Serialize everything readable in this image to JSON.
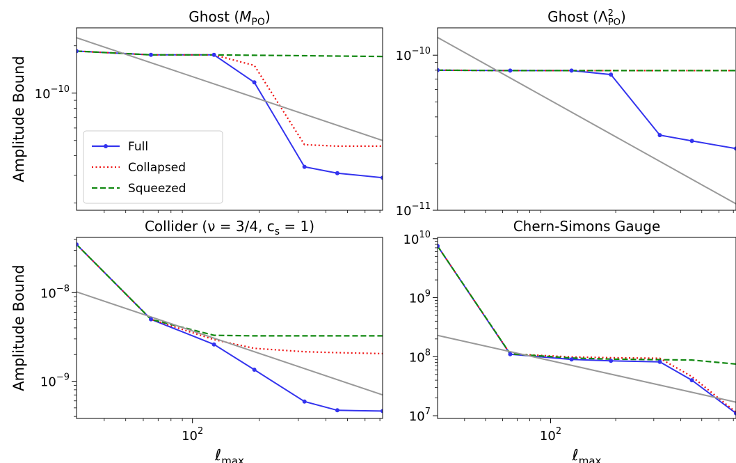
{
  "colors": {
    "full": "#3333ee",
    "collapsed": "#ee1111",
    "squeezed": "#118811",
    "reference": "#999999"
  },
  "legend": {
    "location": "lower-left of top-left panel",
    "entries": [
      {
        "series": "full",
        "label": "Full"
      },
      {
        "series": "collapsed",
        "label": "Collapsed"
      },
      {
        "series": "squeezed",
        "label": "Squeezed"
      }
    ]
  },
  "chart_data": [
    {
      "type": "line",
      "xscale": "log",
      "yscale": "log",
      "title_pre": "Ghost (",
      "title_italic": "M",
      "title_sub": "PO",
      "title_sup": "",
      "title_post": ")",
      "ylabel": "Amplitude Bound",
      "xlabel": "",
      "xlim": [
        30,
        720
      ],
      "ylim": [
        1.8e-11,
        2.6e-10
      ],
      "yticks": [
        {
          "value": 1e-10,
          "base": "10",
          "exp": "−10"
        }
      ],
      "xticks": [],
      "x": [
        30,
        65,
        125,
        190,
        320,
        450,
        720
      ],
      "series": [
        {
          "key": "full",
          "markers": true,
          "values": [
            1.85e-10,
            1.75e-10,
            1.75e-10,
            1.17e-10,
            3.4e-11,
            3.1e-11,
            2.9e-11
          ]
        },
        {
          "key": "collapsed",
          "markers": false,
          "values": [
            1.85e-10,
            1.75e-10,
            1.75e-10,
            1.5e-10,
            4.7e-11,
            4.6e-11,
            4.6e-11
          ]
        },
        {
          "key": "squeezed",
          "markers": false,
          "values": [
            1.85e-10,
            1.75e-10,
            1.75e-10,
            1.74e-10,
            1.73e-10,
            1.72e-10,
            1.71e-10
          ]
        },
        {
          "key": "reference",
          "markers": false,
          "x": [
            30,
            720
          ],
          "values": [
            2.25e-10,
            5e-11
          ]
        }
      ]
    },
    {
      "type": "line",
      "xscale": "log",
      "yscale": "log",
      "title_pre": "Ghost (",
      "title_italic": "",
      "title_sub": "PO",
      "title_sup": "2",
      "title_post": ")",
      "title_symbol": "Λ",
      "ylabel": "",
      "xlabel": "",
      "xlim": [
        30,
        720
      ],
      "ylim": [
        1e-11,
        1.5e-10
      ],
      "yticks": [
        {
          "value": 1e-10,
          "base": "10",
          "exp": "−10"
        },
        {
          "value": 1e-11,
          "base": "10",
          "exp": "−11"
        }
      ],
      "xticks": [],
      "x": [
        30,
        65,
        125,
        190,
        320,
        450,
        720
      ],
      "series": [
        {
          "key": "full",
          "markers": true,
          "values": [
            8e-11,
            7.95e-11,
            7.95e-11,
            7.5e-11,
            3.05e-11,
            2.8e-11,
            2.5e-11
          ]
        },
        {
          "key": "collapsed",
          "markers": false,
          "values": [
            8e-11,
            7.95e-11,
            7.95e-11,
            7.95e-11,
            7.95e-11,
            7.95e-11,
            7.95e-11
          ]
        },
        {
          "key": "squeezed",
          "markers": false,
          "values": [
            8e-11,
            7.95e-11,
            7.95e-11,
            7.95e-11,
            7.95e-11,
            7.95e-11,
            7.95e-11
          ]
        },
        {
          "key": "reference",
          "markers": false,
          "x": [
            30,
            720
          ],
          "values": [
            1.3e-10,
            1.1e-11
          ]
        }
      ]
    },
    {
      "type": "line",
      "xscale": "log",
      "yscale": "log",
      "title_text": "Collider (ν = 3/4, c",
      "title_sub": "s",
      "title_post": " = 1)",
      "ylabel": "Amplitude Bound",
      "xlabel": "ℓ",
      "xlabel_sub": "max",
      "xlim": [
        30,
        720
      ],
      "ylim": [
        3.8e-10,
        4.2e-08
      ],
      "yticks": [
        {
          "value": 1e-08,
          "base": "10",
          "exp": "−8"
        },
        {
          "value": 1e-09,
          "base": "10",
          "exp": "−9"
        }
      ],
      "xticks": [
        {
          "value": 100,
          "base": "10",
          "exp": "2"
        }
      ],
      "x": [
        30,
        65,
        125,
        190,
        320,
        450,
        720
      ],
      "series": [
        {
          "key": "full",
          "markers": true,
          "values": [
            3.5e-08,
            5e-09,
            2.6e-09,
            1.35e-09,
            5.9e-10,
            4.7e-10,
            4.6e-10
          ]
        },
        {
          "key": "collapsed",
          "markers": false,
          "values": [
            3.5e-08,
            5e-09,
            2.95e-09,
            2.35e-09,
            2.15e-09,
            2.1e-09,
            2.05e-09
          ]
        },
        {
          "key": "squeezed",
          "markers": false,
          "values": [
            3.5e-08,
            5e-09,
            3.3e-09,
            3.25e-09,
            3.25e-09,
            3.25e-09,
            3.25e-09
          ]
        },
        {
          "key": "reference",
          "markers": false,
          "x": [
            30,
            720
          ],
          "values": [
            1.02e-08,
            7e-10
          ]
        }
      ]
    },
    {
      "type": "line",
      "xscale": "log",
      "yscale": "log",
      "title_text": "Chern-Simons Gauge",
      "ylabel": "",
      "xlabel": "ℓ",
      "xlabel_sub": "max",
      "xlim": [
        30,
        720
      ],
      "ylim": [
        9000000.0,
        10500000000.0
      ],
      "yticks": [
        {
          "value": 10000000000.0,
          "base": "10",
          "exp": "10"
        },
        {
          "value": 1000000000.0,
          "base": "10",
          "exp": "9"
        },
        {
          "value": 100000000.0,
          "base": "10",
          "exp": "8"
        },
        {
          "value": 10000000.0,
          "base": "10",
          "exp": "7"
        }
      ],
      "xticks": [
        {
          "value": 100,
          "base": "10",
          "exp": "2"
        }
      ],
      "x": [
        30,
        65,
        125,
        190,
        320,
        450,
        720
      ],
      "series": [
        {
          "key": "full",
          "markers": true,
          "values": [
            7500000000.0,
            110000000.0,
            90000000.0,
            85000000.0,
            82000000.0,
            40000000.0,
            11000000.0
          ]
        },
        {
          "key": "collapsed",
          "markers": false,
          "values": [
            7500000000.0,
            112000000.0,
            99000000.0,
            96000000.0,
            94000000.0,
            46000000.0,
            11500000.0
          ]
        },
        {
          "key": "squeezed",
          "markers": false,
          "values": [
            7500000000.0,
            112000000.0,
            95000000.0,
            91000000.0,
            89000000.0,
            88000000.0,
            75000000.0
          ]
        },
        {
          "key": "reference",
          "markers": false,
          "x": [
            30,
            720
          ],
          "values": [
            230000000.0,
            17000000.0
          ]
        }
      ]
    }
  ]
}
